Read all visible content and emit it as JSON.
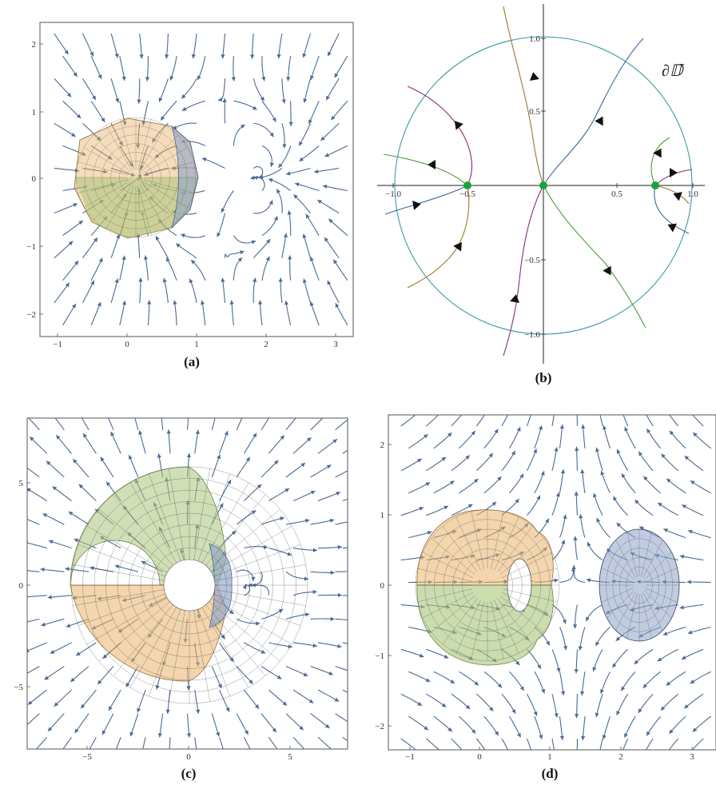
{
  "panels": [
    {
      "id": "a",
      "label": "(a)",
      "x_ticks": [
        "−1",
        "0",
        "1",
        "2",
        "3"
      ],
      "y_ticks": [
        "2",
        "1",
        "0",
        "−1",
        "−2"
      ]
    },
    {
      "id": "b",
      "label": "(b)",
      "x_ticks": [
        "−1.0",
        "−0.5",
        "0.5",
        "1.0"
      ],
      "y_ticks": [
        "1.0",
        "0.5",
        "−0.5",
        "−1.0"
      ],
      "boundary_label": "∂𝔻̄"
    },
    {
      "id": "c",
      "label": "(c)",
      "x_ticks": [
        "−5",
        "0",
        "5"
      ],
      "y_ticks": [
        "5",
        "0",
        "−5"
      ]
    },
    {
      "id": "d",
      "label": "(d)",
      "x_ticks": [
        "−1",
        "0",
        "1",
        "2",
        "3"
      ],
      "y_ticks": [
        "2",
        "1",
        "0",
        "−1",
        "−2"
      ]
    }
  ],
  "colors": {
    "stream": "#4a6a94",
    "orange_region": "#e9b36b",
    "green_region": "#a9c47a",
    "blue_region": "#8ea3c8",
    "circle": "#3a9aa6",
    "fixed_point": "#1aa33a",
    "curve_purple": "#8a2b7a",
    "curve_olive": "#9c7a2a",
    "curve_green": "#4a9a3a",
    "curve_blue": "#3a6aa0"
  }
}
